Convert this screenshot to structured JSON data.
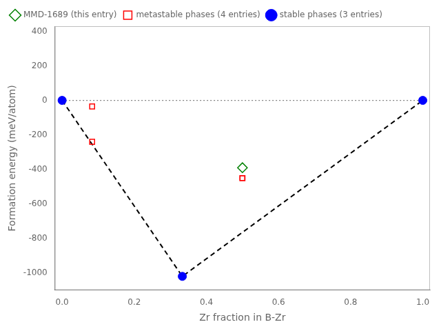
{
  "chart_data": {
    "type": "scatter",
    "xlabel": "Zr fraction in B-Zr",
    "ylabel": "Formation energy (meV/atom)",
    "xlim": [
      -0.02,
      1.02
    ],
    "ylim": [
      -1100,
      430
    ],
    "xticks": [
      {
        "value": 0.0,
        "label": "0.0"
      },
      0.2,
      0.4,
      0.6,
      0.8,
      {
        "value": 1.0,
        "label": "1.0"
      }
    ],
    "yticks": [
      400,
      200,
      0,
      -200,
      -400,
      -600,
      -800,
      -1000
    ],
    "grid": false,
    "legend": "upper left",
    "series": [
      {
        "type": "line",
        "color": "gray",
        "line_style": "dotted",
        "x": [
          0.0,
          1.0
        ],
        "values": [
          0.0,
          0.0
        ]
      },
      {
        "type": "line",
        "color": "black",
        "line_style": "dashed",
        "x": [
          0.0,
          0.3333,
          1.0
        ],
        "values": [
          0.0,
          -1020.0,
          0.0
        ]
      },
      {
        "name": "stable phases (3 entries)",
        "type": "scatter",
        "color": "blue",
        "marker": "circle",
        "x": [
          0.0,
          0.3333,
          1.0
        ],
        "values": [
          0.0,
          -1020.0,
          0.0
        ]
      },
      {
        "name": "metastable phases (4 entries)",
        "type": "scatter",
        "color": "red",
        "marker": "open square",
        "x": [
          0.0833,
          0.0833,
          0.5,
          0.5
        ],
        "values": [
          -35.0,
          -240.0,
          -450.0,
          -450.0
        ]
      },
      {
        "name": "MMD-1689 (this entry)",
        "type": "scatter",
        "color": "green",
        "marker": "open diamond",
        "x": [
          0.5
        ],
        "values": [
          -390.0
        ]
      }
    ]
  }
}
